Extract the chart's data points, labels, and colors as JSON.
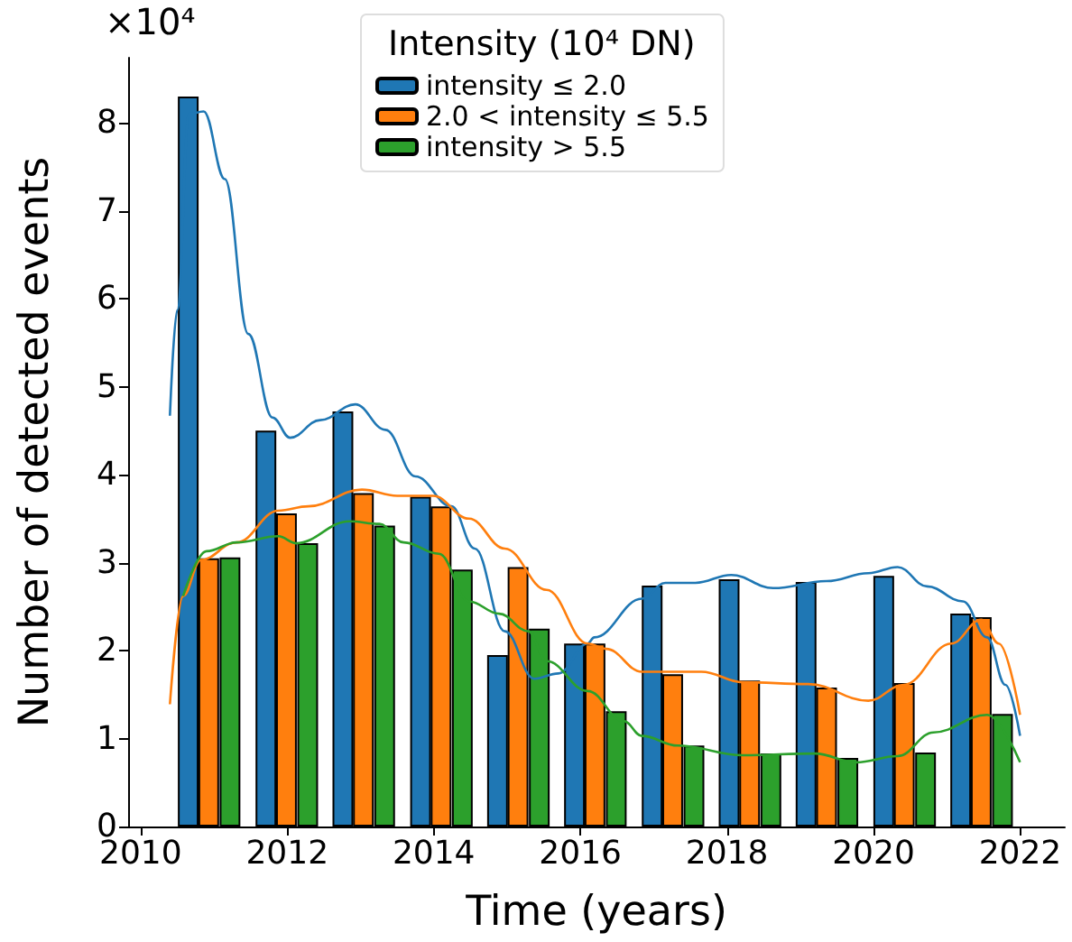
{
  "chart_data": {
    "type": "bar",
    "xlabel": "Time (years)",
    "ylabel": "Number of detected events",
    "legend_title": "Intensity (10⁴ DN)",
    "annotations": [
      "×10⁴"
    ],
    "legend": "top",
    "xlim": [
      2009.83,
      2022.61
    ],
    "ylim": [
      0,
      8.74
    ],
    "xticks": [
      2010,
      2012,
      2014,
      2016,
      2018,
      2020,
      2022
    ],
    "yticks": [
      0,
      1,
      2,
      3,
      4,
      5,
      6,
      7,
      8
    ],
    "series": [
      {
        "name": "intensity ≤ 2.0",
        "color": "#1f77b4",
        "x": [
          2010.65,
          2011.71,
          2012.76,
          2013.82,
          2014.87,
          2015.92,
          2016.98,
          2018.03,
          2019.08,
          2020.14,
          2021.19
        ],
        "values": [
          8.3,
          4.5,
          4.72,
          3.75,
          1.95,
          2.08,
          2.74,
          2.81,
          2.78,
          2.85,
          2.42
        ]
      },
      {
        "name": "2.0 < intensity ≤ 5.5",
        "color": "#ff7f0e",
        "x": [
          2010.93,
          2011.99,
          2013.04,
          2014.1,
          2015.15,
          2016.2,
          2017.26,
          2018.31,
          2019.36,
          2020.42,
          2021.47
        ],
        "values": [
          3.05,
          3.56,
          3.79,
          3.64,
          2.95,
          2.08,
          1.73,
          1.66,
          1.58,
          1.63,
          2.38
        ]
      },
      {
        "name": "intensity > 5.5",
        "color": "#2ca02c",
        "x": [
          2011.22,
          2012.28,
          2013.33,
          2014.39,
          2015.44,
          2016.49,
          2017.55,
          2018.6,
          2019.65,
          2020.71,
          2021.76
        ],
        "values": [
          3.06,
          3.22,
          3.42,
          2.92,
          2.25,
          1.31,
          0.92,
          0.83,
          0.78,
          0.84,
          1.28
        ]
      },
      {
        "type": "line",
        "color": "#1f77b4",
        "x": [
          2010.4,
          2010.5,
          2010.66,
          2010.86,
          2011.15,
          2011.47,
          2011.8,
          2012.04,
          2012.45,
          2012.93,
          2013.34,
          2013.75,
          2014.24,
          2014.56,
          2014.97,
          2015.37,
          2015.7,
          2016.1,
          2016.19,
          2016.84,
          2017.16,
          2017.57,
          2018.06,
          2018.63,
          2019.36,
          2019.93,
          2020.33,
          2020.73,
          2021.22,
          2021.55,
          2021.8,
          2022.0
        ],
        "values": [
          4.67,
          5.87,
          8.1,
          8.13,
          7.36,
          5.6,
          4.65,
          4.42,
          4.62,
          4.8,
          4.51,
          3.98,
          3.64,
          3.16,
          2.22,
          1.68,
          1.74,
          2.08,
          2.15,
          2.59,
          2.77,
          2.77,
          2.86,
          2.71,
          2.79,
          2.88,
          2.95,
          2.73,
          2.56,
          2.15,
          1.61,
          1.03
        ]
      },
      {
        "type": "line",
        "color": "#ff7f0e",
        "x": [
          2010.4,
          2010.58,
          2010.82,
          2011.31,
          2011.88,
          2012.29,
          2013.02,
          2013.5,
          2013.99,
          2014.48,
          2014.97,
          2015.54,
          2016.1,
          2016.35,
          2016.84,
          2017.65,
          2018.22,
          2019.11,
          2019.93,
          2020.41,
          2021.06,
          2021.47,
          2021.71,
          2022.0
        ],
        "values": [
          1.39,
          2.62,
          3.03,
          3.23,
          3.59,
          3.64,
          3.83,
          3.76,
          3.76,
          3.5,
          3.16,
          2.69,
          2.08,
          2.02,
          1.76,
          1.76,
          1.64,
          1.62,
          1.43,
          1.61,
          2.08,
          2.35,
          2.08,
          1.27
        ]
      },
      {
        "type": "line",
        "color": "#2ca02c",
        "x": [
          2010.58,
          2010.9,
          2011.31,
          2011.88,
          2012.12,
          2012.85,
          2013.26,
          2013.59,
          2014.07,
          2014.48,
          2014.89,
          2015.29,
          2015.54,
          2016.1,
          2016.59,
          2016.84,
          2017.33,
          2018.22,
          2019.2,
          2019.76,
          2020.33,
          2020.82,
          2021.55,
          2022.0
        ],
        "values": [
          2.62,
          3.13,
          3.23,
          3.3,
          3.22,
          3.47,
          3.44,
          3.23,
          3.1,
          2.56,
          2.42,
          2.22,
          1.88,
          1.54,
          1.2,
          1.03,
          0.92,
          0.81,
          0.83,
          0.73,
          0.8,
          1.07,
          1.27,
          0.73
        ]
      }
    ]
  }
}
